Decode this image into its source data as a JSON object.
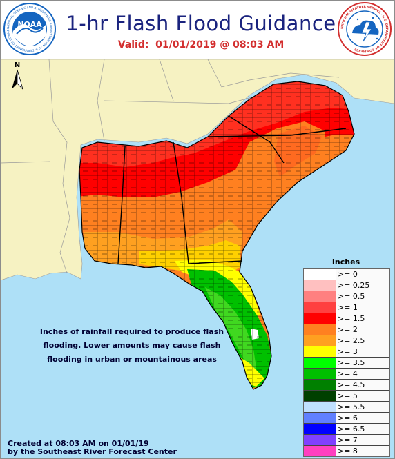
{
  "header": {
    "title": "1-hr Flash Flood Guidance",
    "valid": "Valid:  01/01/2019 @ 08:03 AM"
  },
  "logos": {
    "noaa": {
      "text": "NOAA",
      "ring_text": "NATIONAL OCEANIC AND ATMOSPHERIC ADMINISTRATION · U.S. DEPARTMENT OF COMMERCE",
      "color": "#1565c0"
    },
    "nws": {
      "ring_text": "NATIONAL WEATHER SERVICE · U.S. DEPARTMENT OF COMMERCE",
      "color": "#d32f2f"
    }
  },
  "map": {
    "north_label": "N",
    "ocean_color": "#aee0f7",
    "land_color": "#f6f2c2"
  },
  "note": {
    "lines": [
      "Inches of rainfall required to produce flash",
      "flooding. Lower amounts may cause flash",
      "flooding in urban or mountainous areas"
    ]
  },
  "credit": {
    "lines": [
      "Created at 08:03 AM on 01/01/19",
      "by the Southeast River Forecast Center"
    ]
  },
  "legend": {
    "title": "Inches",
    "entries": [
      {
        "label": ">= 0",
        "color": "#ffffff"
      },
      {
        "label": ">= 0.25",
        "color": "#ffc0c0"
      },
      {
        "label": ">= 0.5",
        "color": "#ff8080"
      },
      {
        "label": ">= 1",
        "color": "#ff4040"
      },
      {
        "label": ">= 1.5",
        "color": "#ff0000"
      },
      {
        "label": ">= 2",
        "color": "#ff8020"
      },
      {
        "label": ">= 2.5",
        "color": "#ffa020"
      },
      {
        "label": ">= 3",
        "color": "#ffff00"
      },
      {
        "label": ">= 3.5",
        "color": "#00ff00"
      },
      {
        "label": ">= 4",
        "color": "#00c000"
      },
      {
        "label": ">= 4.5",
        "color": "#008000"
      },
      {
        "label": ">= 5",
        "color": "#004000"
      },
      {
        "label": ">= 5.5",
        "color": "#c0e0ff"
      },
      {
        "label": ">= 6",
        "color": "#6080ff"
      },
      {
        "label": ">= 6.5",
        "color": "#0000ff"
      },
      {
        "label": ">= 7",
        "color": "#8040ff"
      },
      {
        "label": ">= 8",
        "color": "#ff40c0"
      }
    ]
  }
}
